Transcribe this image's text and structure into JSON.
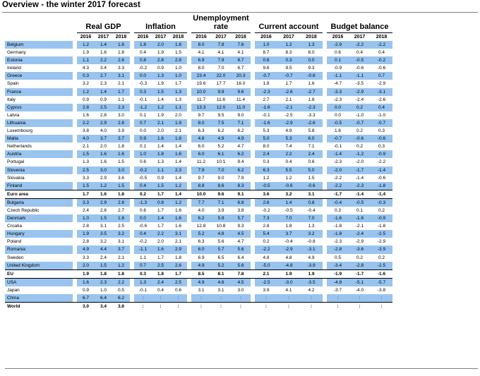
{
  "title": "Overview - the winter 2017 forecast",
  "groups": [
    {
      "label_line1": "Real GDP",
      "label_line2": ""
    },
    {
      "label_line1": "Inflation",
      "label_line2": ""
    },
    {
      "label_line1": "Unemployment",
      "label_line2": "rate"
    },
    {
      "label_line1": "Current account",
      "label_line2": ""
    },
    {
      "label_line1": "Budget balance",
      "label_line2": ""
    }
  ],
  "years": [
    "2016",
    "2017",
    "2018"
  ],
  "rows": [
    {
      "name": "Belgium",
      "blue": true,
      "v": [
        "1.2",
        "1.4",
        "1.6",
        "1.8",
        "2.0",
        "1.8",
        "8.0",
        "7.8",
        "7.6",
        "1.0",
        "1.2",
        "1.3",
        "-2.9",
        "-2.2",
        "-2.2"
      ]
    },
    {
      "name": "Germany",
      "blue": false,
      "v": [
        "1.9",
        "1.6",
        "1.8",
        "0.4",
        "1.9",
        "1.5",
        "4.1",
        "4.1",
        "4.1",
        "8.7",
        "8.3",
        "8.0",
        "0.6",
        "0.4",
        "0.4"
      ]
    },
    {
      "name": "Estonia",
      "blue": true,
      "v": [
        "1.1",
        "2.2",
        "2.6",
        "0.8",
        "2.8",
        "2.8",
        "6.9",
        "7.9",
        "8.7",
        "0.6",
        "0.3",
        "0.0",
        "0.1",
        "-0.5",
        "-0.2"
      ]
    },
    {
      "name": "Ireland",
      "blue": false,
      "v": [
        "4.3",
        "3.4",
        "3.3",
        "-0.2",
        "0.9",
        "1.0",
        "8.0",
        "7.0",
        "6.7",
        "9.6",
        "9.5",
        "9.3",
        "-0.9",
        "-0.6",
        "-0.6"
      ]
    },
    {
      "name": "Greece",
      "blue": true,
      "v": [
        "0.3",
        "2.7",
        "3.1",
        "0.0",
        "1.3",
        "1.0",
        "23.4",
        "22.0",
        "20.3",
        "-0.7",
        "-0.7",
        "-0.6",
        "-1.1",
        "-1.1",
        "0.7"
      ]
    },
    {
      "name": "Spain",
      "blue": false,
      "v": [
        "3.2",
        "2.3",
        "2.1",
        "-0.3",
        "1.9",
        "1.7",
        "19.6",
        "17.7",
        "16.0",
        "1.8",
        "1.7",
        "1.6",
        "-4.7",
        "-3.5",
        "-2.9"
      ]
    },
    {
      "name": "France",
      "blue": true,
      "v": [
        "1.2",
        "1.4",
        "1.7",
        "0.3",
        "1.5",
        "1.3",
        "10.0",
        "9.9",
        "9.6",
        "-2.3",
        "-2.6",
        "-2.7",
        "-3.3",
        "-2.9",
        "-3.1"
      ]
    },
    {
      "name": "Italy",
      "blue": false,
      "v": [
        "0.9",
        "0.9",
        "1.1",
        "-0.1",
        "1.4",
        "1.3",
        "11.7",
        "11.6",
        "11.4",
        "2.7",
        "2.1",
        "1.8",
        "-2.3",
        "-2.4",
        "-2.6"
      ]
    },
    {
      "name": "Cyprus",
      "blue": true,
      "v": [
        "2.8",
        "2.5",
        "2.3",
        "-1.2",
        "1.2",
        "1.1",
        "13.3",
        "12.0",
        "11.0",
        "-1.6",
        "-2.1",
        "-2.3",
        "0.0",
        "0.2",
        "0.4"
      ]
    },
    {
      "name": "Latvia",
      "blue": false,
      "v": [
        "1.6",
        "2.8",
        "3.0",
        "0.1",
        "1.9",
        "2.0",
        "9.7",
        "9.5",
        "9.0",
        "-0.1",
        "-2.5",
        "-3.3",
        "0.0",
        "-1.0",
        "-1.0"
      ]
    },
    {
      "name": "Lithuania",
      "blue": true,
      "v": [
        "2.2",
        "2.9",
        "2.8",
        "0.7",
        "2.1",
        "1.9",
        "8.0",
        "7.5",
        "7.1",
        "-1.6",
        "-2.9",
        "-2.6",
        "-0.5",
        "-0.7",
        "-0.7"
      ]
    },
    {
      "name": "Luxembourg",
      "blue": false,
      "v": [
        "3.8",
        "4.0",
        "3.9",
        "0.0",
        "2.0",
        "2.1",
        "6.3",
        "6.2",
        "6.2",
        "5.3",
        "4.9",
        "5.8",
        "1.6",
        "0.2",
        "0.3"
      ]
    },
    {
      "name": "Malta",
      "blue": true,
      "v": [
        "4.0",
        "3.7",
        "3.7",
        "0.9",
        "1.6",
        "1.8",
        "4.8",
        "4.9",
        "4.9",
        "5.0",
        "5.3",
        "6.0",
        "-0.7",
        "-0.6",
        "-0.6"
      ]
    },
    {
      "name": "Netherlands",
      "blue": false,
      "v": [
        "2.1",
        "2.0",
        "1.8",
        "0.1",
        "1.4",
        "1.4",
        "6.0",
        "5.2",
        "4.7",
        "8.0",
        "7.4",
        "7.1",
        "-0.1",
        "0.2",
        "0.3"
      ]
    },
    {
      "name": "Austria",
      "blue": true,
      "v": [
        "1.5",
        "1.6",
        "1.6",
        "1.0",
        "1.8",
        "1.6",
        "6.0",
        "6.1",
        "6.2",
        "2.4",
        "2.2",
        "2.4",
        "-1.4",
        "-1.2",
        "-0.9"
      ]
    },
    {
      "name": "Portugal",
      "blue": false,
      "v": [
        "1.3",
        "1.6",
        "1.5",
        "0.6",
        "1.3",
        "1.4",
        "11.2",
        "10.1",
        "9.4",
        "0.3",
        "0.4",
        "0.6",
        "-2.3",
        "-2.0",
        "-2.2"
      ]
    },
    {
      "name": "Slovenia",
      "blue": true,
      "v": [
        "2.5",
        "3.0",
        "3.0",
        "-0.2",
        "1.1",
        "2.3",
        "7.9",
        "7.0",
        "6.2",
        "6.3",
        "5.5",
        "5.0",
        "-2.0",
        "-1.7",
        "-1.4"
      ]
    },
    {
      "name": "Slovakia",
      "blue": false,
      "v": [
        "3.3",
        "2.9",
        "3.6",
        "-0.5",
        "0.9",
        "1.4",
        "9.7",
        "9.0",
        "7.9",
        "1.2",
        "1.2",
        "1.5",
        "-2.2",
        "-1.4",
        "-0.6"
      ]
    },
    {
      "name": "Finland",
      "blue": true,
      "v": [
        "1.5",
        "1.2",
        "1.5",
        "0.4",
        "1.5",
        "1.2",
        "8.8",
        "8.6",
        "8.3",
        "-0.5",
        "-0.6",
        "-0.6",
        "-2.2",
        "-2.3",
        "-1.8"
      ]
    },
    {
      "name": "Euro area",
      "blue": false,
      "bold": true,
      "topline": true,
      "v": [
        "1.7",
        "1.6",
        "1.8",
        "0.2",
        "1.7",
        "1.4",
        "10.0",
        "9.6",
        "9.1",
        "3.6",
        "3.2",
        "3.1",
        "-1.7",
        "-1.4",
        "-1.4"
      ]
    },
    {
      "name": "Bulgaria",
      "blue": true,
      "topline": true,
      "v": [
        "3.3",
        "2.9",
        "2.8",
        "-1.3",
        "0.8",
        "1.2",
        "7.7",
        "7.1",
        "6.8",
        "2.6",
        "1.4",
        "0.8",
        "-0.4",
        "-0.5",
        "-0.3"
      ]
    },
    {
      "name": "Czech Republic",
      "blue": false,
      "v": [
        "2.4",
        "2.6",
        "2.7",
        "0.6",
        "1.7",
        "1.6",
        "4.0",
        "3.9",
        "3.8",
        "-0.2",
        "-0.5",
        "-0.4",
        "0.3",
        "0.1",
        "0.2"
      ]
    },
    {
      "name": "Denmark",
      "blue": true,
      "v": [
        "1.0",
        "1.5",
        "1.8",
        "0.0",
        "1.4",
        "1.6",
        "6.2",
        "5.9",
        "5.7",
        "7.3",
        "7.0",
        "7.0",
        "-1.6",
        "-1.6",
        "-0.9"
      ]
    },
    {
      "name": "Croatia",
      "blue": false,
      "v": [
        "2.8",
        "3.1",
        "2.5",
        "-0.6",
        "1.7",
        "1.6",
        "12.8",
        "10.8",
        "9.3",
        "2.8",
        "1.8",
        "1.3",
        "-1.8",
        "-2.1",
        "-1.8"
      ]
    },
    {
      "name": "Hungary",
      "blue": true,
      "v": [
        "1.9",
        "3.5",
        "3.2",
        "0.4",
        "2.2",
        "3.1",
        "5.2",
        "4.8",
        "4.5",
        "5.4",
        "3.7",
        "3.2",
        "-1.8",
        "-2.4",
        "-2.5"
      ]
    },
    {
      "name": "Poland",
      "blue": false,
      "v": [
        "2.8",
        "3.2",
        "3.1",
        "-0.2",
        "2.0",
        "2.1",
        "6.3",
        "5.6",
        "4.7",
        "0.2",
        "-0.4",
        "-0.8",
        "-2.3",
        "-2.9",
        "-2.9"
      ]
    },
    {
      "name": "Romania",
      "blue": true,
      "v": [
        "4.9",
        "4.4",
        "3.7",
        "-1.1",
        "1.6",
        "2.9",
        "6.0",
        "5.7",
        "5.6",
        "-2.2",
        "-2.9",
        "-3.1",
        "-2.8",
        "-3.6",
        "-3.9"
      ]
    },
    {
      "name": "Sweden",
      "blue": false,
      "v": [
        "3.3",
        "2.4",
        "2.1",
        "1.1",
        "1.7",
        "1.8",
        "6.9",
        "6.5",
        "6.4",
        "4.8",
        "4.8",
        "4.9",
        "0.5",
        "0.2",
        "0.2"
      ]
    },
    {
      "name": "United Kingdom",
      "blue": true,
      "v": [
        "2.0",
        "1.5",
        "1.2",
        "0.7",
        "2.5",
        "2.6",
        "4.9",
        "5.2",
        "5.6",
        "-5.0",
        "-4.8",
        "-3.9",
        "-3.4",
        "-2.8",
        "-2.5"
      ]
    },
    {
      "name": "EU",
      "blue": false,
      "bold": true,
      "topline": true,
      "v": [
        "1.9",
        "1.8",
        "1.8",
        "0.3",
        "1.8",
        "1.7",
        "8.5",
        "8.1",
        "7.8",
        "2.1",
        "1.9",
        "1.9",
        "-1.9",
        "-1.7",
        "-1.6"
      ]
    },
    {
      "name": "USA",
      "blue": true,
      "topline": true,
      "v": [
        "1.6",
        "2.3",
        "2.2",
        "1.3",
        "2.4",
        "2.5",
        "4.9",
        "4.6",
        "4.5",
        "-2.5",
        "-3.0",
        "-3.5",
        "-4.8",
        "-5.1",
        "-5.7"
      ]
    },
    {
      "name": "Japan",
      "blue": false,
      "v": [
        "0.9",
        "1.0",
        "0.5",
        "-0.1",
        "0.4",
        "0.6",
        "3.1",
        "3.1",
        "3.0",
        "3.9",
        "4.1",
        "4.2",
        "-3.7",
        "-4.0",
        "-3.8"
      ]
    },
    {
      "name": "China",
      "blue": true,
      "v": [
        "6.7",
        "6.4",
        "6.2",
        ":",
        ":",
        ":",
        ":",
        ":",
        ":",
        ":",
        ":",
        ":",
        ":",
        ":",
        ":"
      ]
    },
    {
      "name": "World",
      "blue": false,
      "bold": true,
      "topline": true,
      "v": [
        "3.0",
        "3.4",
        "3.6",
        ":",
        ":",
        ":",
        ":",
        ":",
        ":",
        ":",
        ":",
        ":",
        ":",
        ":",
        ":"
      ]
    }
  ]
}
